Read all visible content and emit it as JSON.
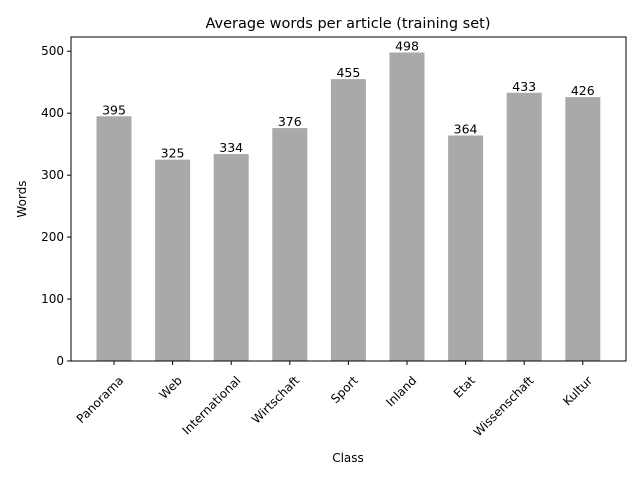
{
  "chart_data": {
    "type": "bar",
    "title": "Average words per article (training set)",
    "xlabel": "Class",
    "ylabel": "Words",
    "categories": [
      "Panorama",
      "Web",
      "International",
      "Wirtschaft",
      "Sport",
      "Inland",
      "Etat",
      "Wissenschaft",
      "Kultur"
    ],
    "values": [
      395,
      325,
      334,
      376,
      455,
      498,
      364,
      433,
      426
    ],
    "data_labels": [
      "395",
      "325",
      "334",
      "376",
      "455",
      "498",
      "364",
      "433",
      "426"
    ],
    "yticks": [
      0,
      100,
      200,
      300,
      400,
      500
    ],
    "ylim": [
      0,
      523
    ],
    "bar_color": "#a9a9a9",
    "grid": false,
    "legend": "none"
  }
}
